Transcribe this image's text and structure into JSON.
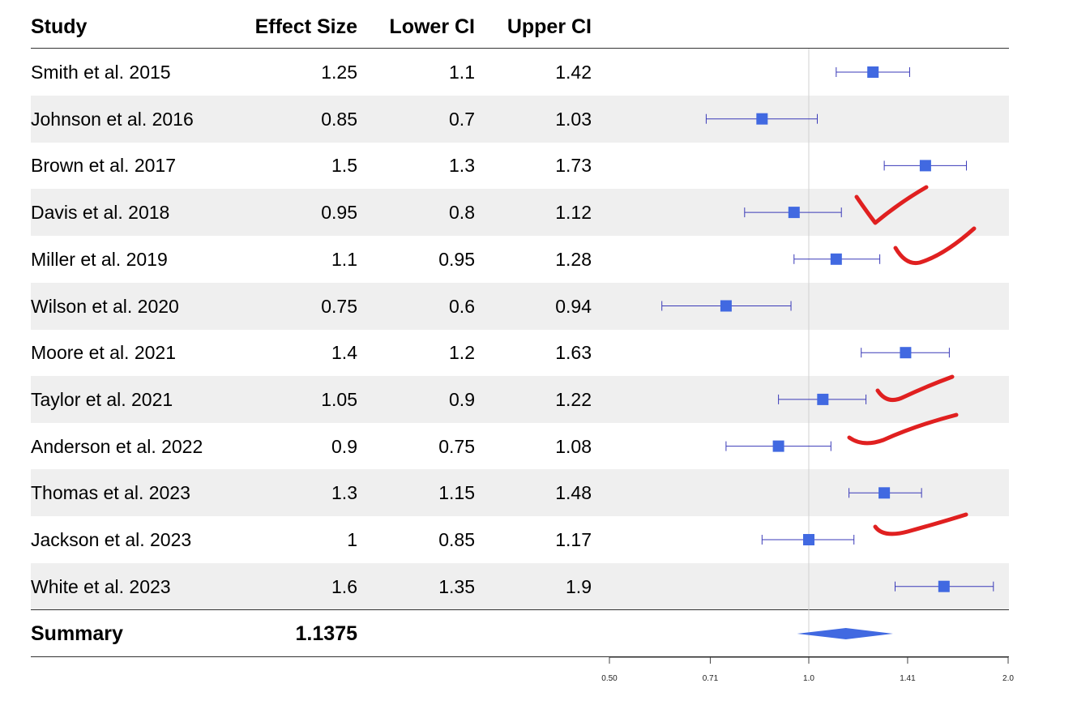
{
  "chart_data": {
    "type": "forest",
    "columns": [
      "Study",
      "Effect Size",
      "Lower CI",
      "Upper CI"
    ],
    "studies": [
      {
        "study": "Smith et al. 2015",
        "effect": 1.25,
        "lower": 1.1,
        "upper": 1.42
      },
      {
        "study": "Johnson et al. 2016",
        "effect": 0.85,
        "lower": 0.7,
        "upper": 1.03
      },
      {
        "study": "Brown et al. 2017",
        "effect": 1.5,
        "lower": 1.3,
        "upper": 1.73
      },
      {
        "study": "Davis et al. 2018",
        "effect": 0.95,
        "lower": 0.8,
        "upper": 1.12
      },
      {
        "study": "Miller et al. 2019",
        "effect": 1.1,
        "lower": 0.95,
        "upper": 1.28
      },
      {
        "study": "Wilson et al. 2020",
        "effect": 0.75,
        "lower": 0.6,
        "upper": 0.94
      },
      {
        "study": "Moore et al. 2021",
        "effect": 1.4,
        "lower": 1.2,
        "upper": 1.63
      },
      {
        "study": "Taylor et al. 2021",
        "effect": 1.05,
        "lower": 0.9,
        "upper": 1.22
      },
      {
        "study": "Anderson et al. 2022",
        "effect": 0.9,
        "lower": 0.75,
        "upper": 1.08
      },
      {
        "study": "Thomas et al. 2023",
        "effect": 1.3,
        "lower": 1.15,
        "upper": 1.48
      },
      {
        "study": "Jackson et al. 2023",
        "effect": 1,
        "lower": 0.85,
        "upper": 1.17
      },
      {
        "study": "White et al. 2023",
        "effect": 1.6,
        "lower": 1.35,
        "upper": 1.9
      }
    ],
    "summary": {
      "label": "Summary",
      "value": "1.1375",
      "effect": 1.1375,
      "lower": 0.96,
      "upper": 1.34
    },
    "xaxis": {
      "scale": "log",
      "range": [
        0.5,
        2.0
      ],
      "ticks": [
        0.5,
        0.71,
        1.0,
        1.41,
        2.0
      ],
      "tick_labels": [
        "0.50",
        "0.71",
        "1.0",
        "1.41",
        "2.0"
      ],
      "reference_line": 1.0
    },
    "annotations": [
      "red checkmark near Davis et al. 2018",
      "red checkmark near Miller et al. 2019",
      "red checkmark near Taylor et al. 2021",
      "red checkmark near Anderson et al. 2022",
      "red checkmark near Jackson et al. 2023"
    ],
    "colors": {
      "marker": "#4169e1",
      "ci_line": "#3a3ab8",
      "zebra": "#efefef",
      "reference": "#d0d0d0",
      "annotation": "#e02020"
    }
  }
}
